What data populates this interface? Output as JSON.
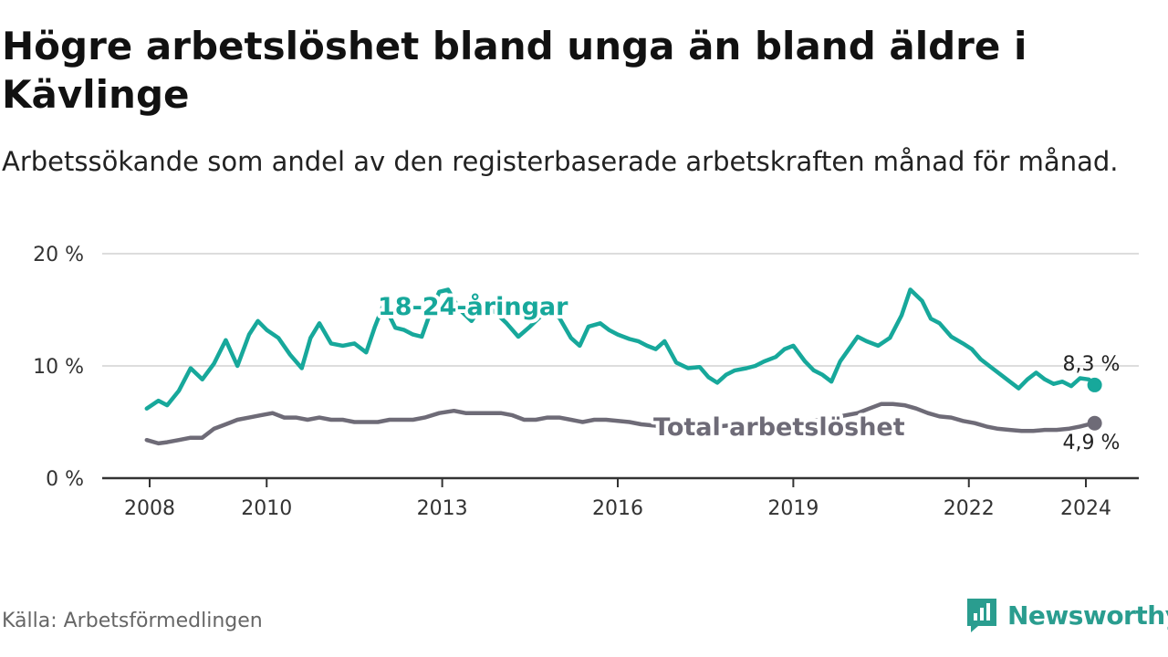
{
  "header": {
    "title": "Högre arbetslöshet bland unga än bland äldre i Kävlinge",
    "subtitle": "Arbetssökande som andel av den registerbaserade arbetskraften månad för månad."
  },
  "footer": {
    "source": "Källa: Arbetsförmedlingen",
    "brand": "Newsworthy"
  },
  "colors": {
    "youth": "#17a89b",
    "total": "#6e6b77",
    "grid": "#dddddd",
    "axis": "#333333"
  },
  "chart_data": {
    "type": "line",
    "title": "Högre arbetslöshet bland unga än bland äldre i Kävlinge",
    "xlabel": "",
    "ylabel": "",
    "xlim": [
      2007.7,
      2025.1
    ],
    "ylim": [
      0,
      20
    ],
    "grid": true,
    "y_ticks": [
      {
        "value": 0,
        "label": "0 %"
      },
      {
        "value": 10,
        "label": "10 %"
      },
      {
        "value": 20,
        "label": "20 %"
      }
    ],
    "x_ticks": [
      {
        "value": 2008,
        "label": "2008"
      },
      {
        "value": 2010,
        "label": "2010"
      },
      {
        "value": 2013,
        "label": "2013"
      },
      {
        "value": 2016,
        "label": "2016"
      },
      {
        "value": 2019,
        "label": "2019"
      },
      {
        "value": 2022,
        "label": "2022"
      },
      {
        "value": 2024,
        "label": "2024"
      }
    ],
    "series": [
      {
        "name": "18-24-åringar",
        "label": "18-24-åringar",
        "end_label": "8,3 %",
        "end_value": 8.3,
        "x": [
          2007.95,
          2008.15,
          2008.3,
          2008.5,
          2008.7,
          2008.9,
          2009.1,
          2009.3,
          2009.5,
          2009.7,
          2009.85,
          2010.0,
          2010.2,
          2010.4,
          2010.6,
          2010.75,
          2010.9,
          2011.1,
          2011.3,
          2011.5,
          2011.7,
          2011.85,
          2012.0,
          2012.2,
          2012.35,
          2012.5,
          2012.65,
          2012.8,
          2012.95,
          2013.1,
          2013.3,
          2013.5,
          2013.7,
          2013.9,
          2014.1,
          2014.3,
          2014.5,
          2014.7,
          2014.85,
          2015.0,
          2015.2,
          2015.35,
          2015.5,
          2015.7,
          2015.85,
          2016.0,
          2016.2,
          2016.35,
          2016.5,
          2016.65,
          2016.8,
          2017.0,
          2017.2,
          2017.4,
          2017.55,
          2017.7,
          2017.85,
          2018.0,
          2018.2,
          2018.35,
          2018.5,
          2018.7,
          2018.85,
          2019.0,
          2019.2,
          2019.35,
          2019.5,
          2019.65,
          2019.8,
          2019.95,
          2020.1,
          2020.25,
          2020.45,
          2020.65,
          2020.85,
          2021.0,
          2021.2,
          2021.35,
          2021.5,
          2021.7,
          2021.9,
          2022.05,
          2022.2,
          2022.4,
          2022.55,
          2022.7,
          2022.85,
          2023.0,
          2023.15,
          2023.3,
          2023.45,
          2023.6,
          2023.75,
          2023.9,
          2024.05,
          2024.15
        ],
        "values": [
          6.2,
          6.9,
          6.5,
          7.8,
          9.8,
          8.8,
          10.2,
          12.3,
          10.0,
          12.8,
          14.0,
          13.2,
          12.5,
          11.0,
          9.8,
          12.5,
          13.8,
          12.0,
          11.8,
          12.0,
          11.2,
          13.5,
          15.5,
          13.4,
          13.2,
          12.8,
          12.6,
          14.8,
          16.6,
          16.8,
          15.0,
          14.0,
          15.5,
          14.8,
          13.8,
          12.6,
          13.5,
          14.5,
          14.8,
          14.3,
          12.5,
          11.8,
          13.5,
          13.8,
          13.2,
          12.8,
          12.4,
          12.2,
          11.8,
          11.5,
          12.2,
          10.3,
          9.8,
          9.9,
          9.0,
          8.5,
          9.2,
          9.6,
          9.8,
          10.0,
          10.4,
          10.8,
          11.5,
          11.8,
          10.4,
          9.6,
          9.2,
          8.6,
          10.4,
          11.5,
          12.6,
          12.2,
          11.8,
          12.5,
          14.5,
          16.8,
          15.8,
          14.2,
          13.8,
          12.6,
          12.0,
          11.5,
          10.6,
          9.8,
          9.2,
          8.6,
          8.0,
          8.8,
          9.4,
          8.8,
          8.4,
          8.6,
          8.2,
          8.9,
          8.8,
          8.3
        ]
      },
      {
        "name": "Total arbetslöshet",
        "label": "Total arbetslöshet",
        "end_label": "4,9 %",
        "end_value": 4.9,
        "x": [
          2007.95,
          2008.15,
          2008.3,
          2008.5,
          2008.7,
          2008.9,
          2009.1,
          2009.3,
          2009.5,
          2009.7,
          2009.9,
          2010.1,
          2010.3,
          2010.5,
          2010.7,
          2010.9,
          2011.1,
          2011.3,
          2011.5,
          2011.7,
          2011.9,
          2012.1,
          2012.3,
          2012.5,
          2012.7,
          2012.95,
          2013.2,
          2013.4,
          2013.6,
          2013.8,
          2014.0,
          2014.2,
          2014.4,
          2014.6,
          2014.8,
          2015.0,
          2015.2,
          2015.4,
          2015.6,
          2015.8,
          2016.0,
          2016.2,
          2016.4,
          2016.6,
          2016.75,
          2016.9,
          2017.1,
          2017.3,
          2017.5,
          2017.7,
          2017.9,
          2018.1,
          2018.3,
          2018.5,
          2018.7,
          2018.9,
          2019.1,
          2019.3,
          2019.5,
          2019.7,
          2019.9,
          2020.1,
          2020.3,
          2020.5,
          2020.7,
          2020.9,
          2021.1,
          2021.3,
          2021.5,
          2021.7,
          2021.9,
          2022.1,
          2022.3,
          2022.5,
          2022.7,
          2022.9,
          2023.1,
          2023.3,
          2023.5,
          2023.7,
          2023.9,
          2024.05,
          2024.15
        ],
        "values": [
          3.4,
          3.1,
          3.2,
          3.4,
          3.6,
          3.6,
          4.4,
          4.8,
          5.2,
          5.4,
          5.6,
          5.8,
          5.4,
          5.4,
          5.2,
          5.4,
          5.2,
          5.2,
          5.0,
          5.0,
          5.0,
          5.2,
          5.2,
          5.2,
          5.4,
          5.8,
          6.0,
          5.8,
          5.8,
          5.8,
          5.8,
          5.6,
          5.2,
          5.2,
          5.4,
          5.4,
          5.2,
          5.0,
          5.2,
          5.2,
          5.1,
          5.0,
          4.8,
          4.7,
          4.6,
          4.5,
          4.5,
          4.6,
          4.6,
          4.6,
          4.7,
          4.7,
          4.8,
          4.8,
          4.8,
          4.9,
          5.0,
          5.1,
          5.2,
          5.4,
          5.6,
          5.8,
          6.2,
          6.6,
          6.6,
          6.5,
          6.2,
          5.8,
          5.5,
          5.4,
          5.1,
          4.9,
          4.6,
          4.4,
          4.3,
          4.2,
          4.2,
          4.3,
          4.3,
          4.4,
          4.6,
          4.8,
          4.9
        ]
      }
    ]
  }
}
